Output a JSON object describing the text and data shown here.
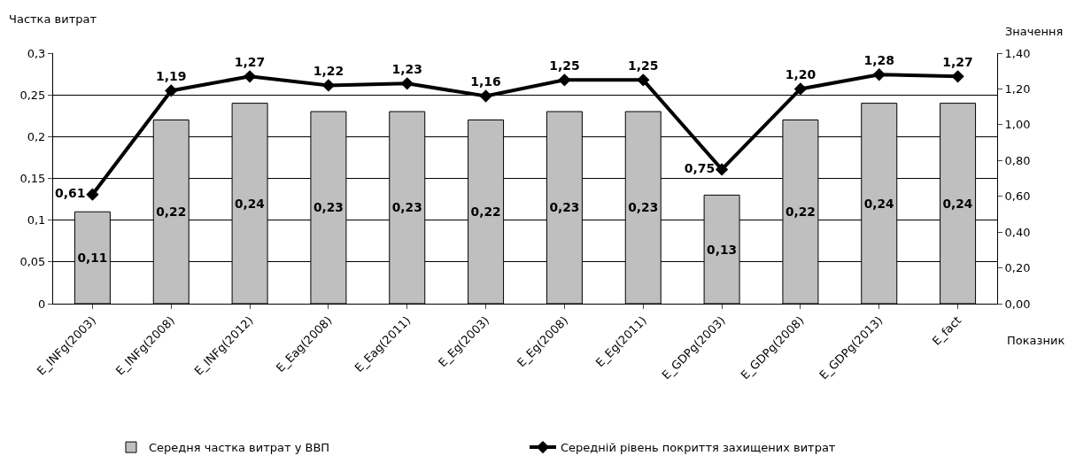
{
  "chart_data": {
    "type": "bar",
    "xlabel": "Показник",
    "ylabel": "Частка витрат",
    "y2label": "Значення",
    "categories": [
      "E_INFg(2003)",
      "E_INFg(2008)",
      "E_INFg(2012)",
      "E_Eag(2008)",
      "E_Eag(2011)",
      "E_Eg(2003)",
      "E_Eg(2008)",
      "E_Eg(2011)",
      "E_GDPg(2003)",
      "E_GDPg(2008)",
      "E_GDPg(2013)",
      "E_fact"
    ],
    "series": [
      {
        "name": "Середня частка витрат у ВВП",
        "color": "#bfbfbf",
        "values": [
          0.11,
          0.22,
          0.24,
          0.23,
          0.23,
          0.22,
          0.23,
          0.23,
          0.13,
          0.22,
          0.24,
          0.24
        ],
        "value_labels": [
          "0,11",
          "0,22",
          "0,24",
          "0,23",
          "0,23",
          "0,22",
          "0,23",
          "0,23",
          "0,13",
          "0,22",
          "0,24",
          "0,24"
        ]
      },
      {
        "name": "Середній рівень покриття захищених витрат",
        "type": "line",
        "axis": "y2",
        "color": "#000000",
        "marker": "diamond",
        "line_style": "solid",
        "values": [
          0.61,
          1.19,
          1.27,
          1.22,
          1.23,
          1.16,
          1.25,
          1.25,
          0.75,
          1.2,
          1.28,
          1.27
        ],
        "value_labels": [
          "0,61",
          "1,19",
          "1,27",
          "1,22",
          "1,23",
          "1,16",
          "1,25",
          "1,25",
          "0,75",
          "1,20",
          "1,28",
          "1,27"
        ]
      }
    ],
    "ylim": [
      0,
      0.3
    ],
    "yticks": [
      {
        "value": 0,
        "label": "0"
      },
      {
        "value": 0.05,
        "label": "0,05"
      },
      {
        "value": 0.1,
        "label": "0,1"
      },
      {
        "value": 0.15,
        "label": "0,15"
      },
      {
        "value": 0.2,
        "label": "0,2"
      },
      {
        "value": 0.25,
        "label": "0,25"
      },
      {
        "value": 0.3,
        "label": "0,3"
      }
    ],
    "y2lim": [
      0,
      1.4
    ],
    "y2ticks": [
      {
        "value": 0,
        "label": "0,00"
      },
      {
        "value": 0.2,
        "label": "0,20"
      },
      {
        "value": 0.4,
        "label": "0,40"
      },
      {
        "value": 0.6,
        "label": "0,60"
      },
      {
        "value": 0.8,
        "label": "0,80"
      },
      {
        "value": 1,
        "label": "1,00"
      },
      {
        "value": 1.2,
        "label": "1,20"
      },
      {
        "value": 1.4,
        "label": "1,40"
      }
    ],
    "grid": "y",
    "legend": "bottom"
  }
}
